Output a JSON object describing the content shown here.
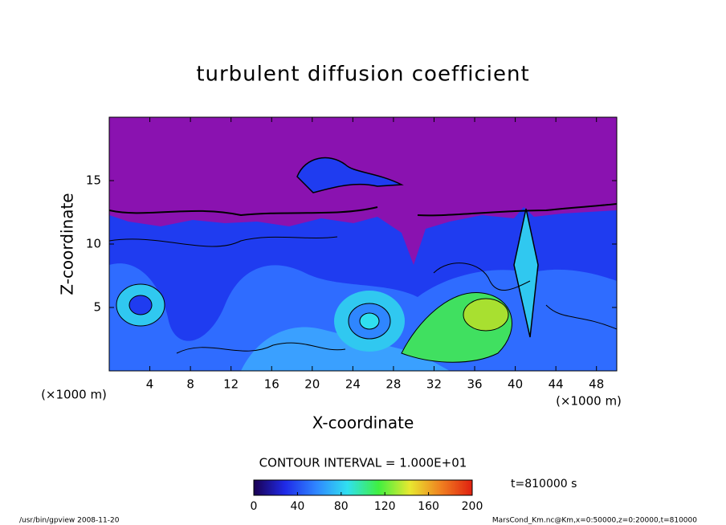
{
  "chart_data": {
    "type": "contour",
    "title": "turbulent diffusion coefficient",
    "xlabel": "X-coordinate",
    "ylabel": "Z-coordinate",
    "x_unit": "(×1000 m)",
    "xlim": [
      0,
      50
    ],
    "xticks": [
      4,
      8,
      12,
      16,
      20,
      24,
      28,
      32,
      36,
      40,
      44,
      48
    ],
    "ylim": [
      0,
      20
    ],
    "yticks": [
      5,
      10,
      15
    ],
    "contour_interval": "CONTOUR INTERVAL = 1.000E+01",
    "time_label": "t=810000 s",
    "clim": [
      0,
      200
    ],
    "cticks": [
      0,
      40,
      80,
      120,
      160,
      200
    ],
    "colormap": [
      "#1a0050",
      "#1f2ae8",
      "#2f86ff",
      "#30e0f0",
      "#40f040",
      "#e8e830",
      "#f08020",
      "#e02010"
    ],
    "footer_left": "/usr/bin/gpview   2008-11-20",
    "footer_right": "MarsCond_Km.nc@Km,x=0:50000,z=0:20000,t=810000"
  }
}
